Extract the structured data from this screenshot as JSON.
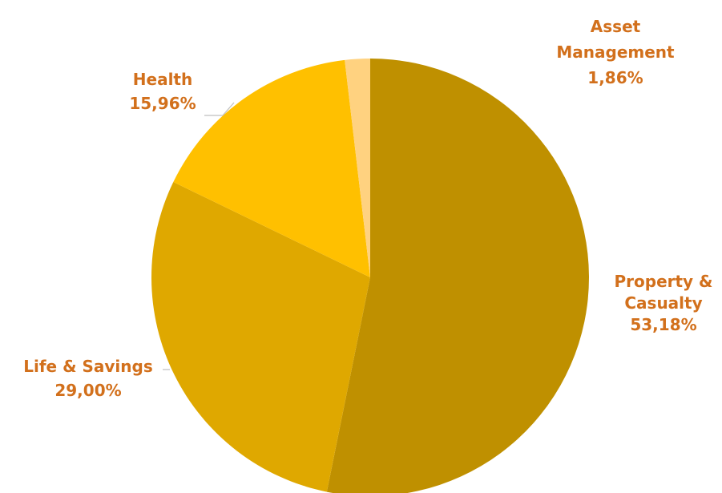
{
  "chart_data": {
    "type": "pie",
    "title": "",
    "start_angle_deg": 0,
    "direction": "clockwise",
    "label_color": "#d2701c",
    "slices": [
      {
        "name": "Property & Casualty",
        "label_lines": [
          "Property &",
          "Casualty"
        ],
        "value": 53.18,
        "value_label": "53,18%",
        "color": "#bf9000"
      },
      {
        "name": "Life & Savings",
        "label_lines": [
          "Life & Savings"
        ],
        "value": 29.0,
        "value_label": "29,00%",
        "color": "#dfa800"
      },
      {
        "name": "Health",
        "label_lines": [
          "Health"
        ],
        "value": 15.96,
        "value_label": "15,96%",
        "color": "#ffc000"
      },
      {
        "name": "Asset Management",
        "label_lines": [
          "Asset",
          "Management"
        ],
        "value": 1.86,
        "value_label": "1,86%",
        "color": "#ffd280"
      }
    ]
  }
}
